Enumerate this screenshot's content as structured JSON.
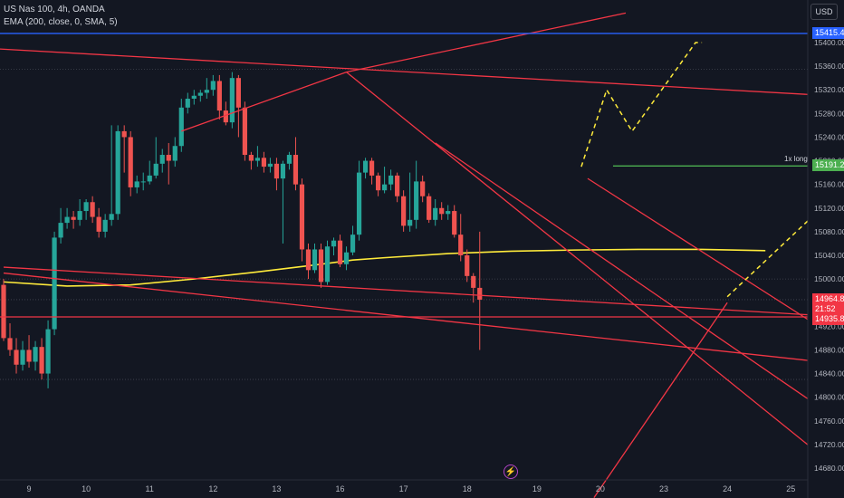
{
  "header": {
    "symbol_line": "US Nas 100, 4h, OANDA",
    "indicator_line": "EMA (200, close, 0, SMA, 5)"
  },
  "currency_button": "USD",
  "price_tags": {
    "blue_line": "15415.4",
    "long_entry": "15191.2",
    "current_price": "14964.8",
    "countdown": "21:52",
    "red_line": "14935.8"
  },
  "annotations": {
    "long_label": "1x long"
  },
  "colors": {
    "background": "#131722",
    "bull": "#26a69a",
    "bear": "#ef5350",
    "ema": "#ffeb3b",
    "trendline": "#f23645",
    "long_line": "#4caf50",
    "blue_line": "#2962ff",
    "projection": "#ffeb3b"
  },
  "icons": {
    "bolt": "lightning-icon"
  },
  "chart_data": {
    "type": "candlestick",
    "title": "US Nas 100, 4h, OANDA",
    "y_axis": {
      "ticks": [
        15400,
        15360,
        15320,
        15280,
        15240,
        15200,
        15160,
        15120,
        15080,
        15040,
        15000,
        14960,
        14920,
        14880,
        14840,
        14800,
        14760,
        14720,
        14680
      ],
      "range": [
        14660,
        15450
      ]
    },
    "x_axis": {
      "labels": [
        "9",
        "10",
        "11",
        "12",
        "13",
        "16",
        "17",
        "18",
        "19",
        "20",
        "23",
        "24",
        "25"
      ]
    },
    "bar_range": [
      0,
      120
    ],
    "label_bars": [
      4,
      13,
      23,
      33,
      43,
      53,
      63,
      73,
      84,
      94,
      104,
      114,
      124
    ],
    "candles": [
      [
        14990,
        14900,
        15000,
        14895
      ],
      [
        14900,
        14880,
        14925,
        14870
      ],
      [
        14880,
        14855,
        14900,
        14840
      ],
      [
        14855,
        14880,
        14895,
        14845
      ],
      [
        14880,
        14860,
        14905,
        14850
      ],
      [
        14860,
        14885,
        14895,
        14845
      ],
      [
        14885,
        14840,
        14900,
        14830
      ],
      [
        14840,
        14915,
        14930,
        14815
      ],
      [
        14915,
        15070,
        15080,
        14905
      ],
      [
        15070,
        15095,
        15120,
        15060
      ],
      [
        15095,
        15105,
        15120,
        15085
      ],
      [
        15105,
        15100,
        15115,
        15085
      ],
      [
        15100,
        15115,
        15135,
        15090
      ],
      [
        15115,
        15130,
        15135,
        15100
      ],
      [
        15130,
        15105,
        15140,
        15095
      ],
      [
        15105,
        15080,
        15120,
        15070
      ],
      [
        15080,
        15100,
        15110,
        15070
      ],
      [
        15100,
        15110,
        15260,
        15090
      ],
      [
        15110,
        15250,
        15260,
        15100
      ],
      [
        15250,
        15240,
        15260,
        15180
      ],
      [
        15240,
        15155,
        15250,
        15140
      ],
      [
        15155,
        15165,
        15175,
        15145
      ],
      [
        15165,
        15165,
        15180,
        15150
      ],
      [
        15165,
        15175,
        15200,
        15160
      ],
      [
        15175,
        15195,
        15240,
        15170
      ],
      [
        15195,
        15210,
        15220,
        15180
      ],
      [
        15210,
        15200,
        15230,
        15160
      ],
      [
        15200,
        15225,
        15240,
        15190
      ],
      [
        15225,
        15290,
        15305,
        15215
      ],
      [
        15290,
        15305,
        15315,
        15280
      ],
      [
        15305,
        15310,
        15320,
        15295
      ],
      [
        15310,
        15315,
        15320,
        15300
      ],
      [
        15315,
        15320,
        15340,
        15305
      ],
      [
        15320,
        15335,
        15345,
        15310
      ],
      [
        15335,
        15285,
        15345,
        15270
      ],
      [
        15285,
        15265,
        15300,
        15260
      ],
      [
        15265,
        15340,
        15350,
        15255
      ],
      [
        15340,
        15290,
        15345,
        15240
      ],
      [
        15290,
        15210,
        15300,
        15200
      ],
      [
        15210,
        15200,
        15215,
        15185
      ],
      [
        15200,
        15205,
        15225,
        15190
      ],
      [
        15205,
        15190,
        15215,
        15180
      ],
      [
        15190,
        15195,
        15205,
        15180
      ],
      [
        15195,
        15170,
        15205,
        15150
      ],
      [
        15170,
        15195,
        15200,
        15060
      ],
      [
        15195,
        15210,
        15215,
        15185
      ],
      [
        15210,
        15160,
        15240,
        15150
      ],
      [
        15160,
        15050,
        15170,
        15030
      ],
      [
        15050,
        15015,
        15060,
        15000
      ],
      [
        15015,
        15050,
        15060,
        15010
      ],
      [
        15050,
        14995,
        15060,
        14985
      ],
      [
        14995,
        15055,
        15065,
        14990
      ],
      [
        15055,
        15065,
        15070,
        15040
      ],
      [
        15065,
        15025,
        15075,
        15020
      ],
      [
        15025,
        15045,
        15055,
        15015
      ],
      [
        15045,
        15075,
        15090,
        15040
      ],
      [
        15075,
        15180,
        15200,
        15065
      ],
      [
        15180,
        15200,
        15205,
        15170
      ],
      [
        15200,
        15175,
        15205,
        15160
      ],
      [
        15175,
        15150,
        15180,
        15140
      ],
      [
        15150,
        15160,
        15190,
        15145
      ],
      [
        15160,
        15175,
        15185,
        15150
      ],
      [
        15175,
        15140,
        15180,
        15130
      ],
      [
        15140,
        15090,
        15150,
        15080
      ],
      [
        15090,
        15100,
        15180,
        15080
      ],
      [
        15100,
        15165,
        15200,
        15085
      ],
      [
        15165,
        15140,
        15175,
        15130
      ],
      [
        15140,
        15100,
        15145,
        15095
      ],
      [
        15100,
        15120,
        15135,
        15090
      ],
      [
        15120,
        15110,
        15130,
        15100
      ],
      [
        15110,
        15115,
        15125,
        15100
      ],
      [
        15115,
        15075,
        15125,
        15070
      ],
      [
        15075,
        15040,
        15110,
        15030
      ],
      [
        15040,
        15005,
        15050,
        14995
      ],
      [
        15005,
        14985,
        15010,
        14960
      ],
      [
        14985,
        14965,
        15080,
        14880
      ]
    ],
    "series": [
      {
        "name": "EMA (200, close, 0, SMA, 5)",
        "points": [
          [
            0,
            14995
          ],
          [
            10,
            14988
          ],
          [
            20,
            14990
          ],
          [
            30,
            15000
          ],
          [
            40,
            15012
          ],
          [
            50,
            15025
          ],
          [
            55,
            15032
          ],
          [
            60,
            15036
          ],
          [
            70,
            15043
          ],
          [
            80,
            15047
          ],
          [
            90,
            15049
          ],
          [
            100,
            15050
          ],
          [
            110,
            15050
          ],
          [
            120,
            15048
          ]
        ]
      }
    ],
    "horizontal_lines": [
      {
        "y": 15415.4,
        "color": "blue"
      },
      {
        "y": 14935.8,
        "color": "red"
      },
      {
        "y": 15191.2,
        "from_bar": 96,
        "color": "green",
        "label": "1x long"
      }
    ],
    "trendlines": [
      [
        [
          -2,
          15390
        ],
        [
          180,
          15280
        ]
      ],
      [
        [
          28,
          15250
        ],
        [
          54,
          15350
        ]
      ],
      [
        [
          54,
          15350
        ],
        [
          98,
          15450
        ]
      ],
      [
        [
          54,
          15350
        ],
        [
          137,
          14630
        ]
      ],
      [
        [
          68,
          15230
        ],
        [
          148,
          14640
        ]
      ],
      [
        [
          0,
          15020
        ],
        [
          181,
          14905
        ]
      ],
      [
        [
          0,
          15010
        ],
        [
          180,
          14800
        ]
      ],
      [
        [
          92,
          15170
        ],
        [
          172,
          14620
        ]
      ],
      [
        [
          114,
          14960
        ],
        [
          93,
          14630
        ]
      ]
    ],
    "projections": [
      [
        [
          91,
          15190
        ],
        [
          95,
          15320
        ],
        [
          99,
          15250
        ],
        [
          109,
          15400
        ],
        [
          110,
          15400
        ]
      ],
      [
        [
          114,
          14970
        ],
        [
          157,
          15405
        ]
      ]
    ]
  }
}
